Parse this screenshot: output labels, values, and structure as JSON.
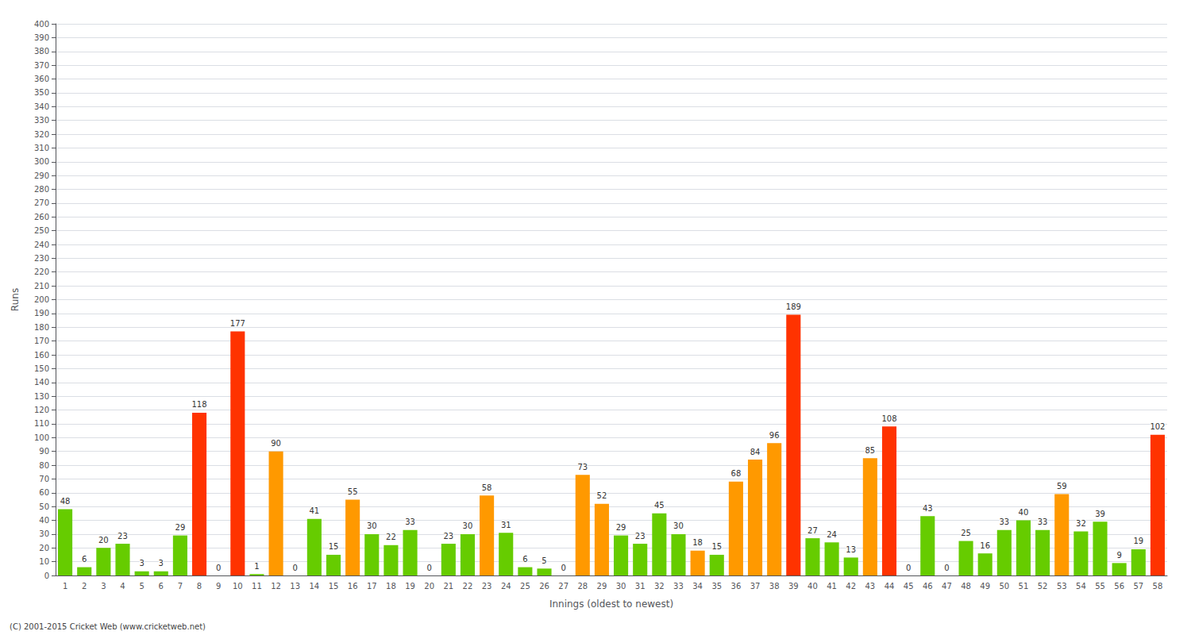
{
  "chart_data": {
    "type": "bar",
    "xlabel": "Innings (oldest to newest)",
    "ylabel": "Runs",
    "annotations": [
      "(C) 2001-2015 Cricket Web (www.cricketweb.net)"
    ],
    "categories": [
      "1",
      "2",
      "3",
      "4",
      "5",
      "6",
      "7",
      "8",
      "9",
      "10",
      "11",
      "12",
      "13",
      "14",
      "15",
      "16",
      "17",
      "18",
      "19",
      "20",
      "21",
      "22",
      "23",
      "24",
      "25",
      "26",
      "27",
      "28",
      "29",
      "30",
      "31",
      "32",
      "33",
      "34",
      "35",
      "36",
      "37",
      "38",
      "39",
      "40",
      "41",
      "42",
      "43",
      "44",
      "45",
      "46",
      "47",
      "48",
      "49",
      "50",
      "51",
      "52",
      "53",
      "54",
      "55",
      "56",
      "57",
      "58"
    ],
    "values": [
      48,
      6,
      20,
      23,
      3,
      3,
      29,
      118,
      0,
      177,
      1,
      90,
      0,
      41,
      15,
      55,
      30,
      22,
      33,
      0,
      23,
      30,
      58,
      31,
      6,
      5,
      0,
      73,
      52,
      29,
      23,
      45,
      30,
      18,
      15,
      68,
      84,
      96,
      189,
      27,
      24,
      13,
      85,
      108,
      0,
      43,
      0,
      25,
      16,
      33,
      40,
      33,
      59,
      32,
      39,
      9,
      19,
      102
    ],
    "colors": [
      "#66cc00",
      "#66cc00",
      "#66cc00",
      "#66cc00",
      "#66cc00",
      "#66cc00",
      "#66cc00",
      "#ff3300",
      "#66cc00",
      "#ff3300",
      "#66cc00",
      "#ff9900",
      "#66cc00",
      "#66cc00",
      "#66cc00",
      "#ff9900",
      "#66cc00",
      "#66cc00",
      "#66cc00",
      "#66cc00",
      "#66cc00",
      "#66cc00",
      "#ff9900",
      "#66cc00",
      "#66cc00",
      "#66cc00",
      "#66cc00",
      "#ff9900",
      "#ff9900",
      "#66cc00",
      "#66cc00",
      "#66cc00",
      "#66cc00",
      "#ff9900",
      "#66cc00",
      "#ff9900",
      "#ff9900",
      "#ff9900",
      "#ff3300",
      "#66cc00",
      "#66cc00",
      "#66cc00",
      "#ff9900",
      "#ff3300",
      "#66cc00",
      "#66cc00",
      "#66cc00",
      "#66cc00",
      "#66cc00",
      "#66cc00",
      "#66cc00",
      "#66cc00",
      "#ff9900",
      "#66cc00",
      "#66cc00",
      "#66cc00",
      "#66cc00",
      "#ff3300"
    ],
    "ylim": [
      0,
      400
    ],
    "yticks": [
      0,
      10,
      20,
      30,
      40,
      50,
      60,
      70,
      80,
      90,
      100,
      110,
      120,
      130,
      140,
      150,
      160,
      170,
      180,
      190,
      200,
      210,
      220,
      230,
      240,
      250,
      260,
      270,
      280,
      290,
      300,
      310,
      320,
      330,
      340,
      350,
      360,
      370,
      380,
      390,
      400
    ],
    "grid": true,
    "data_labels": true
  }
}
